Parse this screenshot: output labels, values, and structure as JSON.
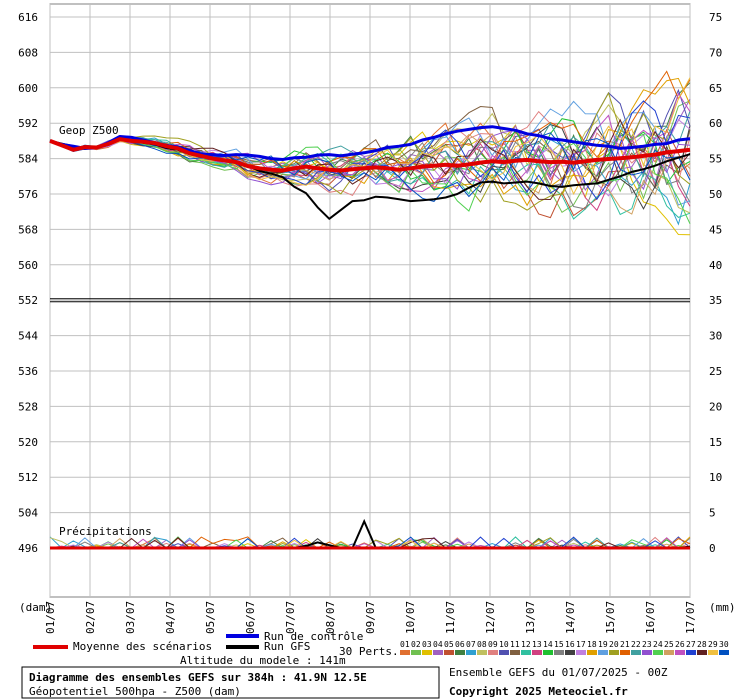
{
  "chart_data": {
    "type": "line",
    "title": "Diagramme des ensembles GEFS sur 384h : 41.9N 12.5E",
    "subtitle": "Géopotentiel 500hpa - Z500 (dam)",
    "left_axis": {
      "unit": "(dam)",
      "ticks": [
        616,
        608,
        600,
        592,
        584,
        576,
        568,
        560,
        552,
        544,
        536,
        528,
        520,
        512,
        504,
        496
      ]
    },
    "right_axis": {
      "unit": "(mm)",
      "ticks": [
        75,
        70,
        65,
        60,
        55,
        50,
        45,
        40,
        35,
        30,
        25,
        20,
        15,
        10,
        5,
        0
      ]
    },
    "x_ticks": [
      "01/07",
      "02/07",
      "03/07",
      "04/07",
      "05/07",
      "06/07",
      "07/07",
      "08/07",
      "09/07",
      "10/07",
      "11/07",
      "12/07",
      "13/07",
      "14/07",
      "15/07",
      "16/07",
      "17/07"
    ],
    "x_range": [
      0,
      16
    ],
    "y_range_dam": [
      494.2,
      618.2
    ],
    "y_range_mm": [
      -0.14,
      75
    ],
    "panel_labels": {
      "geop": "Geop Z500",
      "precip": "Précipitations"
    },
    "series": [
      {
        "name": "Moyenne des scénarios",
        "color": "#e00000",
        "values": [
          588,
          587,
          586,
          586.6,
          586.5,
          587.3,
          588.4,
          588,
          587.8,
          587.5,
          586.8,
          586.3,
          585.2,
          584.6,
          584,
          583.6,
          583.2,
          582.3,
          581.8,
          581.5,
          581.3,
          581.8,
          582.2,
          581.8,
          581.5,
          581.3,
          581.6,
          581.8,
          582,
          581.8,
          581.5,
          581.8,
          582.2,
          582.4,
          582.6,
          582.4,
          582.7,
          583.1,
          583.4,
          583.2,
          583.5,
          583.7,
          583.4,
          583.2,
          583.3,
          583.1,
          583.4,
          583.7,
          583.9,
          584.1,
          584.3,
          584.6,
          584.9,
          585.4,
          585.7,
          586
        ]
      },
      {
        "name": "Run de contrôle",
        "color": "#0000e0",
        "values": [
          588,
          587.2,
          586.8,
          586.3,
          586.4,
          587.6,
          589,
          588.8,
          588.2,
          587.6,
          587,
          586.6,
          585.8,
          585,
          584.9,
          584.7,
          584.9,
          584.8,
          584.5,
          584,
          583.8,
          584.2,
          584.3,
          584.8,
          584.9,
          584.6,
          585,
          585.3,
          585.8,
          586.5,
          586.8,
          587.2,
          588.2,
          588.8,
          589.6,
          590.2,
          590.6,
          591,
          591.2,
          590.8,
          590.4,
          589.6,
          589.2,
          588.5,
          588.2,
          587.8,
          587.4,
          587,
          586.8,
          586.3,
          586.5,
          586.8,
          587.2,
          587.4,
          588.2,
          588.5
        ]
      },
      {
        "name": "Run GFS",
        "color": "#000000",
        "values": [
          588,
          587.4,
          586.8,
          586.2,
          586.5,
          587.2,
          588.6,
          588.2,
          587.6,
          587.2,
          586.4,
          586,
          585,
          584.4,
          584,
          583.6,
          583.2,
          582.4,
          581.2,
          580.6,
          579.8,
          577.6,
          576.2,
          573,
          570.4,
          572.4,
          574.4,
          574.6,
          575.4,
          575.2,
          574.8,
          574.4,
          574.6,
          574.8,
          575.2,
          576,
          577.4,
          578.6,
          578.8,
          578.4,
          578.6,
          578.8,
          578.4,
          577.8,
          577.6,
          578,
          578.2,
          578.4,
          579.2,
          580,
          581,
          581.6,
          582.4,
          583.4,
          584.2,
          585
        ]
      }
    ],
    "ensemble_count": 30,
    "precip": {
      "mean": [
        0,
        0,
        0,
        0,
        0,
        0,
        0,
        0,
        0,
        0,
        0,
        0,
        0,
        0,
        0,
        0,
        0,
        0,
        0,
        0,
        0,
        0,
        0,
        0,
        0,
        0,
        0,
        0,
        0,
        0,
        0,
        0,
        0,
        0,
        0,
        0,
        0,
        0,
        0,
        0,
        0,
        0,
        0,
        0,
        0,
        0,
        0,
        0,
        0,
        0,
        0,
        0,
        0,
        0,
        0,
        0
      ],
      "gfs": [
        0,
        0,
        0,
        0,
        0,
        0,
        0,
        0,
        0,
        0,
        0,
        0,
        0,
        0,
        0,
        0,
        0,
        0,
        0,
        0,
        0,
        0,
        0.3,
        0.8,
        0.4,
        0,
        0,
        3.8,
        0,
        0,
        0,
        0,
        0,
        0,
        0,
        0,
        0,
        0,
        0,
        0,
        0,
        0,
        0,
        0,
        0,
        0,
        0,
        0,
        0,
        0,
        0,
        0,
        0,
        0,
        0,
        0.2
      ],
      "control": [
        0,
        0,
        0,
        0,
        0,
        0,
        0,
        0,
        0,
        0,
        0,
        0,
        0,
        0,
        0,
        0,
        0,
        0,
        0,
        0,
        0,
        0,
        0,
        0,
        0,
        0,
        0,
        0,
        0,
        0,
        0,
        0,
        0,
        0,
        0,
        0,
        0,
        0,
        0,
        0,
        0,
        0,
        0,
        0,
        0,
        0,
        0,
        0,
        0,
        0,
        0,
        0,
        0,
        0,
        0,
        0
      ]
    }
  },
  "legend": {
    "mean_label": "Moyenne des scénarios",
    "control_label": "Run de contrôle",
    "gfs_label": "Run GFS",
    "perts_label": "30 Perts.",
    "altitude": "Altitude du modele : 141m",
    "pert_numbers": [
      "01",
      "02",
      "03",
      "04",
      "05",
      "06",
      "07",
      "08",
      "09",
      "10",
      "11",
      "12",
      "13",
      "14",
      "15",
      "16",
      "17",
      "18",
      "19",
      "20",
      "21",
      "22",
      "23",
      "24",
      "25",
      "26",
      "27",
      "28",
      "29",
      "30"
    ],
    "pert_colors": [
      "#e07030",
      "#70c050",
      "#e0c000",
      "#a060c0",
      "#c05030",
      "#408040",
      "#30a0d0",
      "#c0c060",
      "#e08080",
      "#5050b0",
      "#806040",
      "#30c0a0",
      "#d04080",
      "#20c030",
      "#808080",
      "#404040",
      "#c080e0",
      "#e0a000",
      "#60a0e0",
      "#a0a020",
      "#e06000",
      "#40a0a0",
      "#9050d0",
      "#50d050",
      "#d0a060",
      "#c050c0",
      "#2040d0",
      "#602020",
      "#f0c040",
      "#0050c0"
    ]
  },
  "footer": {
    "title_line1": "Diagramme des ensembles GEFS sur 384h : 41.9N 12.5E",
    "title_line2": "Géopotentiel 500hpa - Z500 (dam)",
    "ensemble": "Ensemble GEFS du 01/07/2025 - 00Z",
    "copyright": "Copyright 2025 Meteociel.fr"
  }
}
